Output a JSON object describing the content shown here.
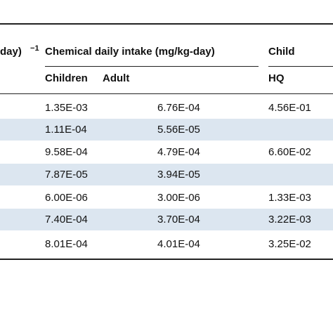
{
  "header": {
    "left_fragment": "day)",
    "left_superscript": "−1",
    "intake_group": "Chemical daily intake (mg/kg-day)",
    "child_group": "Child",
    "children": "Children",
    "adult": "Adult",
    "hq": "HQ"
  },
  "rows": [
    {
      "children": "1.35E-03",
      "adult": "6.76E-04",
      "child_hq": "4.56E-01"
    },
    {
      "children": "1.11E-04",
      "adult": "5.56E-05",
      "child_hq": ""
    },
    {
      "children": "9.58E-04",
      "adult": "4.79E-04",
      "child_hq": "6.60E-02"
    },
    {
      "children": "7.87E-05",
      "adult": "3.94E-05",
      "child_hq": ""
    },
    {
      "children": "6.00E-06",
      "adult": "3.00E-06",
      "child_hq": "1.33E-03"
    },
    {
      "children": "7.40E-04",
      "adult": "3.70E-04",
      "child_hq": "3.22E-03"
    },
    {
      "children": "8.01E-04",
      "adult": "4.01E-04",
      "child_hq": "3.25E-02"
    }
  ],
  "colors": {
    "row_shade": "#dce6f0",
    "rule": "#222222",
    "text": "#111111"
  }
}
